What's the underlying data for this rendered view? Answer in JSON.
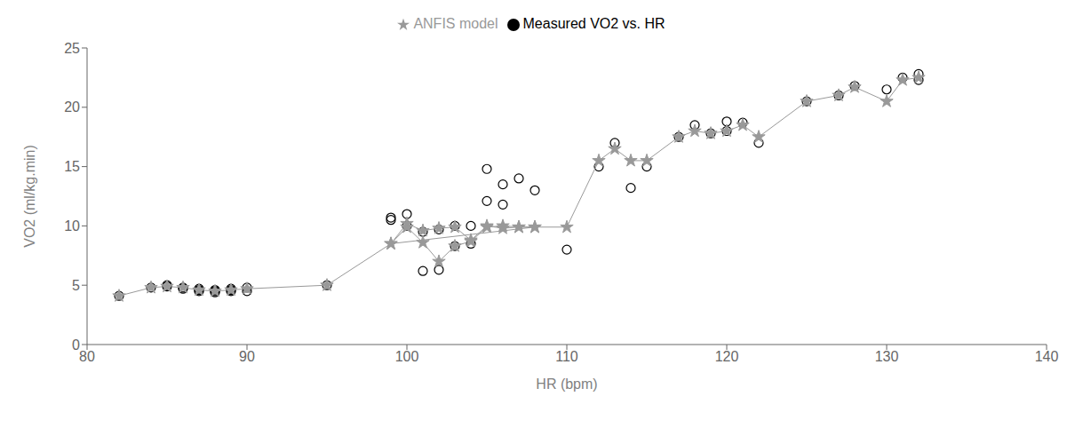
{
  "chart_data": {
    "type": "scatter",
    "xlabel": "HR (bpm)",
    "ylabel": "VO2 (ml/kg.min)",
    "xlim": [
      80,
      140
    ],
    "ylim": [
      0,
      25
    ],
    "xticks": [
      80,
      90,
      100,
      110,
      120,
      130,
      140
    ],
    "yticks": [
      0,
      5,
      10,
      15,
      20,
      25
    ],
    "grid": false,
    "legend": "top",
    "series": [
      {
        "name": "Measured VO2 vs. HR",
        "type": "scatter",
        "marker": "circle",
        "color": "#000000",
        "x": [
          82,
          84,
          85,
          85,
          86,
          86,
          87,
          87,
          87,
          88,
          88,
          88,
          89,
          89,
          89,
          90,
          90,
          95,
          99,
          99,
          100,
          100,
          101,
          101,
          102,
          102,
          103,
          103,
          104,
          104,
          105,
          105,
          106,
          106,
          107,
          108,
          110,
          112,
          113,
          114,
          115,
          117,
          118,
          119,
          120,
          120,
          121,
          122,
          125,
          127,
          128,
          130,
          131,
          132,
          132
        ],
        "values": [
          4.1,
          4.8,
          4.9,
          5.0,
          4.7,
          4.8,
          4.5,
          4.6,
          4.7,
          4.4,
          4.5,
          4.6,
          4.5,
          4.6,
          4.7,
          4.5,
          4.8,
          5.0,
          10.5,
          10.7,
          10.0,
          11.0,
          6.2,
          9.5,
          6.3,
          9.7,
          8.3,
          10.0,
          8.5,
          10.0,
          12.1,
          14.8,
          11.8,
          13.5,
          14.0,
          13.0,
          8.0,
          15.0,
          17.0,
          13.2,
          15.0,
          17.5,
          18.5,
          17.8,
          18.0,
          18.8,
          18.7,
          17.0,
          20.5,
          21.0,
          21.8,
          21.5,
          22.5,
          22.3,
          22.8
        ]
      },
      {
        "name": "ANFIS model",
        "type": "line",
        "marker": "star",
        "color": "#999999",
        "x": [
          82,
          84,
          85,
          86,
          87,
          88,
          89,
          90,
          95,
          99,
          100,
          101,
          102,
          103,
          104,
          105,
          106,
          107,
          108,
          99,
          100,
          101,
          102,
          103,
          104,
          105,
          106,
          107,
          108,
          110,
          112,
          113,
          114,
          115,
          117,
          118,
          119,
          120,
          121,
          122,
          125,
          127,
          128,
          130,
          131,
          132
        ],
        "values": [
          4.1,
          4.8,
          4.9,
          4.8,
          4.6,
          4.5,
          4.6,
          4.7,
          5.0,
          8.5,
          9.9,
          8.6,
          7.0,
          8.3,
          8.7,
          9.9,
          10.0,
          9.9,
          9.9,
          8.5,
          10.2,
          9.6,
          9.8,
          9.9,
          8.8,
          10.0,
          9.8,
          9.9,
          9.9,
          9.9,
          15.5,
          16.5,
          15.5,
          15.5,
          17.5,
          18.0,
          17.8,
          18.0,
          18.5,
          17.5,
          20.5,
          21.0,
          21.7,
          20.5,
          22.3,
          22.5
        ]
      }
    ]
  }
}
